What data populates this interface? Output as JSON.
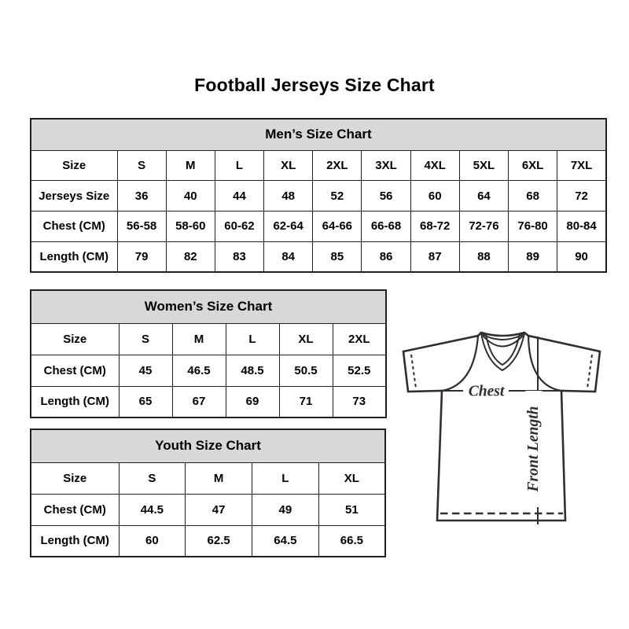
{
  "title": "Football Jerseys Size Chart",
  "chart_data": [
    {
      "type": "table",
      "id": "mens",
      "title": "Men’s Size Chart",
      "rows": [
        [
          "Size",
          "S",
          "M",
          "L",
          "XL",
          "2XL",
          "3XL",
          "4XL",
          "5XL",
          "6XL",
          "7XL"
        ],
        [
          "Jerseys Size",
          "36",
          "40",
          "44",
          "48",
          "52",
          "56",
          "60",
          "64",
          "68",
          "72"
        ],
        [
          "Chest (CM)",
          "56-58",
          "58-60",
          "60-62",
          "62-64",
          "64-66",
          "66-68",
          "68-72",
          "72-76",
          "76-80",
          "80-84"
        ],
        [
          "Length (CM)",
          "79",
          "82",
          "83",
          "84",
          "85",
          "86",
          "87",
          "88",
          "89",
          "90"
        ]
      ]
    },
    {
      "type": "table",
      "id": "womens",
      "title": "Women’s Size Chart",
      "rows": [
        [
          "Size",
          "S",
          "M",
          "L",
          "XL",
          "2XL"
        ],
        [
          "Chest (CM)",
          "45",
          "46.5",
          "48.5",
          "50.5",
          "52.5"
        ],
        [
          "Length (CM)",
          "65",
          "67",
          "69",
          "71",
          "73"
        ]
      ]
    },
    {
      "type": "table",
      "id": "youth",
      "title": "Youth Size Chart",
      "rows": [
        [
          "Size",
          "S",
          "M",
          "L",
          "XL"
        ],
        [
          "Chest (CM)",
          "44.5",
          "47",
          "49",
          "51"
        ],
        [
          "Length (CM)",
          "60",
          "62.5",
          "64.5",
          "66.5"
        ]
      ]
    }
  ],
  "diagram": {
    "chest_label": "Chest",
    "front_length_label": "Front Length"
  },
  "colors": {
    "header_bg": "#d8d8d8",
    "table_border": "#1f1f1f",
    "text": "#000000",
    "jersey_line": "#332d2b"
  }
}
